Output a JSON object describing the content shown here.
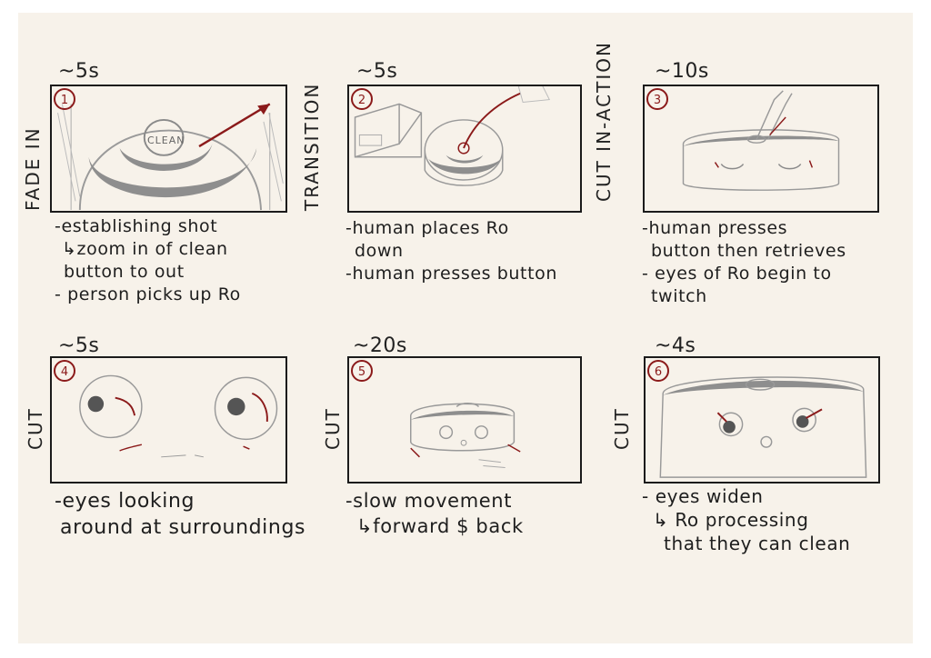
{
  "colors": {
    "paper": "#f7f2ea",
    "ink": "#1b1b1b",
    "accent": "#8b1a1a",
    "pencil": "#8a8a8a"
  },
  "panels": [
    {
      "number": "1",
      "duration": "~5s",
      "side_label": "FADE IN",
      "inner_label": "CLEAN",
      "notes": [
        "-establishing shot",
        "↳zoom in of clean",
        "button to out",
        "- person picks up Ro"
      ]
    },
    {
      "number": "2",
      "duration": "~5s",
      "side_label": "TRANSITION",
      "notes": [
        "-human places Ro",
        "down",
        "-human presses button"
      ]
    },
    {
      "number": "3",
      "duration": "~10s",
      "side_label": "CUT IN-ACTION",
      "notes": [
        "-human presses",
        "button then retrieves",
        "- eyes of Ro begin to",
        "twitch"
      ]
    },
    {
      "number": "4",
      "duration": "~5s",
      "side_label": "CUT",
      "notes": [
        "-eyes looking",
        "around at surroundings"
      ]
    },
    {
      "number": "5",
      "duration": "~20s",
      "side_label": "CUT",
      "notes": [
        "-slow movement",
        "↳forward $ back"
      ]
    },
    {
      "number": "6",
      "duration": "~4s",
      "side_label": "CUT",
      "notes": [
        "- eyes widen",
        "↳ Ro processing",
        "that they can clean"
      ]
    }
  ]
}
